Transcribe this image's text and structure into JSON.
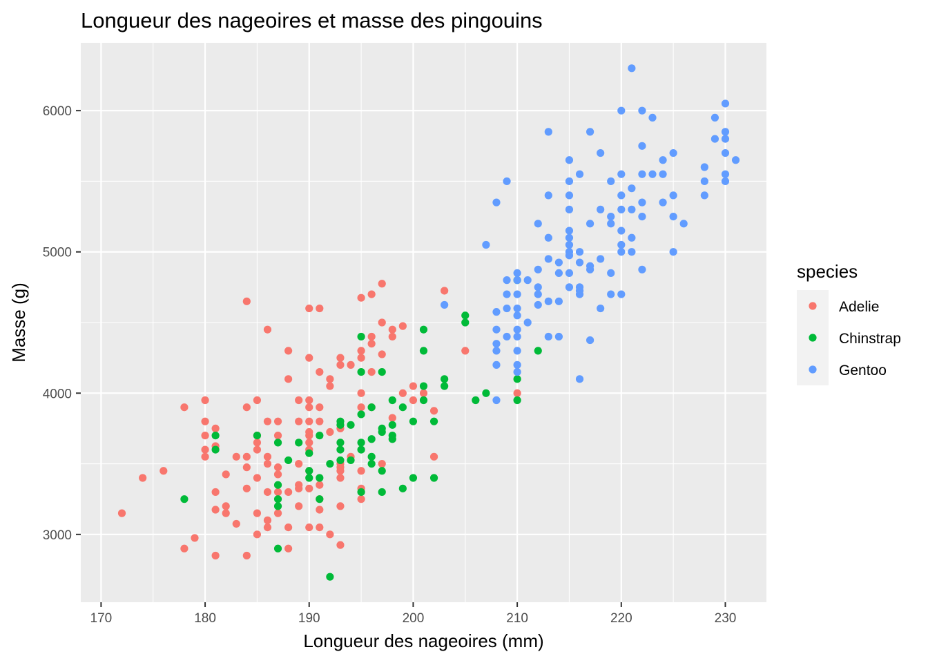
{
  "chart_data": {
    "type": "scatter",
    "title": "Longueur des nageoires et masse des pingouins",
    "xlabel": "Longueur des nageoires (mm)",
    "ylabel": "Masse (g)",
    "xlim": [
      168.05,
      233.95
    ],
    "ylim": [
      2520,
      6480
    ],
    "x_ticks": [
      170,
      180,
      190,
      200,
      210,
      220,
      230
    ],
    "y_ticks": [
      3000,
      4000,
      5000,
      6000
    ],
    "x_tick_labels": [
      "170",
      "180",
      "190",
      "200",
      "210",
      "220",
      "230"
    ],
    "y_tick_labels": [
      "3000",
      "4000",
      "5000",
      "6000"
    ],
    "grid": true,
    "legend": {
      "title": "species",
      "position": "right"
    },
    "series": [
      {
        "name": "Adelie",
        "color": "#F8766D",
        "points": [
          [
            172,
            3150
          ],
          [
            174,
            3400
          ],
          [
            176,
            3450
          ],
          [
            178,
            3900
          ],
          [
            178,
            2900
          ],
          [
            179,
            2975
          ],
          [
            180,
            3950
          ],
          [
            180,
            3800
          ],
          [
            180,
            3700
          ],
          [
            180,
            3600
          ],
          [
            180,
            3550
          ],
          [
            181,
            3750
          ],
          [
            181,
            3625
          ],
          [
            181,
            3300
          ],
          [
            181,
            3175
          ],
          [
            181,
            2850
          ],
          [
            182,
            3425
          ],
          [
            182,
            3200
          ],
          [
            182,
            3150
          ],
          [
            183,
            3550
          ],
          [
            183,
            3075
          ],
          [
            184,
            4650
          ],
          [
            184,
            3900
          ],
          [
            184,
            3550
          ],
          [
            184,
            3475
          ],
          [
            184,
            3325
          ],
          [
            184,
            2850
          ],
          [
            185,
            3950
          ],
          [
            185,
            3700
          ],
          [
            185,
            3650
          ],
          [
            185,
            3600
          ],
          [
            185,
            3400
          ],
          [
            185,
            3150
          ],
          [
            185,
            3000
          ],
          [
            186,
            4450
          ],
          [
            186,
            3800
          ],
          [
            186,
            3550
          ],
          [
            186,
            3500
          ],
          [
            186,
            3300
          ],
          [
            186,
            3100
          ],
          [
            186,
            3050
          ],
          [
            187,
            3800
          ],
          [
            187,
            3700
          ],
          [
            187,
            3475
          ],
          [
            187,
            3425
          ],
          [
            187,
            3300
          ],
          [
            187,
            3150
          ],
          [
            188,
            4300
          ],
          [
            188,
            4100
          ],
          [
            188,
            3300
          ],
          [
            188,
            3050
          ],
          [
            188,
            2900
          ],
          [
            189,
            3950
          ],
          [
            189,
            3800
          ],
          [
            189,
            3500
          ],
          [
            189,
            3350
          ],
          [
            189,
            3325
          ],
          [
            189,
            3200
          ],
          [
            190,
            4600
          ],
          [
            190,
            4250
          ],
          [
            190,
            3950
          ],
          [
            190,
            3900
          ],
          [
            190,
            3800
          ],
          [
            190,
            3725
          ],
          [
            190,
            3700
          ],
          [
            190,
            3650
          ],
          [
            190,
            3600
          ],
          [
            190,
            3450
          ],
          [
            190,
            3325
          ],
          [
            190,
            3050
          ],
          [
            191,
            4600
          ],
          [
            191,
            4150
          ],
          [
            191,
            3900
          ],
          [
            191,
            3800
          ],
          [
            191,
            3350
          ],
          [
            191,
            3250
          ],
          [
            191,
            3175
          ],
          [
            191,
            3050
          ],
          [
            192,
            4100
          ],
          [
            192,
            4050
          ],
          [
            192,
            3725
          ],
          [
            192,
            3000
          ],
          [
            193,
            4250
          ],
          [
            193,
            4200
          ],
          [
            193,
            3750
          ],
          [
            193,
            3500
          ],
          [
            193,
            3475
          ],
          [
            193,
            3450
          ],
          [
            193,
            3400
          ],
          [
            193,
            3200
          ],
          [
            193,
            2925
          ],
          [
            194,
            4200
          ],
          [
            194,
            3550
          ],
          [
            195,
            4675
          ],
          [
            195,
            4300
          ],
          [
            195,
            4250
          ],
          [
            195,
            4000
          ],
          [
            195,
            3900
          ],
          [
            195,
            3450
          ],
          [
            195,
            3325
          ],
          [
            195,
            3250
          ],
          [
            196,
            4700
          ],
          [
            196,
            4400
          ],
          [
            196,
            4350
          ],
          [
            196,
            4150
          ],
          [
            196,
            3900
          ],
          [
            197,
            4775
          ],
          [
            197,
            4500
          ],
          [
            197,
            4275
          ],
          [
            197,
            3500
          ],
          [
            198,
            4450
          ],
          [
            198,
            4400
          ],
          [
            198,
            3825
          ],
          [
            199,
            4475
          ],
          [
            199,
            4000
          ],
          [
            200,
            4050
          ],
          [
            200,
            3950
          ],
          [
            201,
            4000
          ],
          [
            202,
            3875
          ],
          [
            202,
            3550
          ],
          [
            203,
            4725
          ],
          [
            205,
            4300
          ],
          [
            210,
            4000
          ]
        ]
      },
      {
        "name": "Chinstrap",
        "color": "#00BA38",
        "points": [
          [
            178,
            3250
          ],
          [
            181,
            3700
          ],
          [
            181,
            3600
          ],
          [
            185,
            3700
          ],
          [
            187,
            3650
          ],
          [
            187,
            3350
          ],
          [
            187,
            3250
          ],
          [
            187,
            3200
          ],
          [
            187,
            2900
          ],
          [
            188,
            3525
          ],
          [
            189,
            3650
          ],
          [
            190,
            3575
          ],
          [
            190,
            3450
          ],
          [
            190,
            3400
          ],
          [
            191,
            3700
          ],
          [
            191,
            3400
          ],
          [
            191,
            3250
          ],
          [
            192,
            3500
          ],
          [
            192,
            2700
          ],
          [
            193,
            3800
          ],
          [
            193,
            3775
          ],
          [
            193,
            3650
          ],
          [
            193,
            3600
          ],
          [
            193,
            3525
          ],
          [
            194,
            3775
          ],
          [
            194,
            3525
          ],
          [
            195,
            4400
          ],
          [
            195,
            4150
          ],
          [
            195,
            3850
          ],
          [
            195,
            3650
          ],
          [
            195,
            3600
          ],
          [
            195,
            3300
          ],
          [
            196,
            3900
          ],
          [
            196,
            3675
          ],
          [
            196,
            3550
          ],
          [
            196,
            3500
          ],
          [
            197,
            4150
          ],
          [
            197,
            3750
          ],
          [
            197,
            3725
          ],
          [
            197,
            3450
          ],
          [
            197,
            3300
          ],
          [
            198,
            3950
          ],
          [
            198,
            3775
          ],
          [
            198,
            3700
          ],
          [
            198,
            3675
          ],
          [
            199,
            3900
          ],
          [
            199,
            3325
          ],
          [
            200,
            3800
          ],
          [
            200,
            3400
          ],
          [
            201,
            4450
          ],
          [
            201,
            4300
          ],
          [
            201,
            4050
          ],
          [
            201,
            3950
          ],
          [
            202,
            3800
          ],
          [
            202,
            3400
          ],
          [
            203,
            4100
          ],
          [
            203,
            4050
          ],
          [
            205,
            4550
          ],
          [
            205,
            4500
          ],
          [
            206,
            3950
          ],
          [
            207,
            4000
          ],
          [
            210,
            4800
          ],
          [
            210,
            4100
          ],
          [
            210,
            3950
          ],
          [
            212,
            4300
          ]
        ]
      },
      {
        "name": "Gentoo",
        "color": "#619CFF",
        "points": [
          [
            203,
            4625
          ],
          [
            207,
            5050
          ],
          [
            208,
            5350
          ],
          [
            208,
            4575
          ],
          [
            208,
            4450
          ],
          [
            208,
            4350
          ],
          [
            208,
            4300
          ],
          [
            208,
            4200
          ],
          [
            208,
            3950
          ],
          [
            209,
            5500
          ],
          [
            209,
            4800
          ],
          [
            209,
            4700
          ],
          [
            209,
            4600
          ],
          [
            209,
            4400
          ],
          [
            210,
            4850
          ],
          [
            210,
            4800
          ],
          [
            210,
            4700
          ],
          [
            210,
            4600
          ],
          [
            210,
            4550
          ],
          [
            210,
            4450
          ],
          [
            210,
            4400
          ],
          [
            210,
            4300
          ],
          [
            210,
            4200
          ],
          [
            210,
            4150
          ],
          [
            211,
            4800
          ],
          [
            211,
            4500
          ],
          [
            212,
            5200
          ],
          [
            212,
            4875
          ],
          [
            212,
            4750
          ],
          [
            212,
            4700
          ],
          [
            212,
            4625
          ],
          [
            213,
            5850
          ],
          [
            213,
            5400
          ],
          [
            213,
            5100
          ],
          [
            213,
            4950
          ],
          [
            213,
            4650
          ],
          [
            213,
            4400
          ],
          [
            214,
            4925
          ],
          [
            214,
            4850
          ],
          [
            214,
            4650
          ],
          [
            214,
            4400
          ],
          [
            215,
            5650
          ],
          [
            215,
            5500
          ],
          [
            215,
            5400
          ],
          [
            215,
            5300
          ],
          [
            215,
            5150
          ],
          [
            215,
            5100
          ],
          [
            215,
            5050
          ],
          [
            215,
            5000
          ],
          [
            215,
            4975
          ],
          [
            215,
            4850
          ],
          [
            215,
            4750
          ],
          [
            216,
            5550
          ],
          [
            216,
            5000
          ],
          [
            216,
            4925
          ],
          [
            216,
            4750
          ],
          [
            216,
            4725
          ],
          [
            216,
            4700
          ],
          [
            216,
            4100
          ],
          [
            217,
            5850
          ],
          [
            217,
            5200
          ],
          [
            217,
            4900
          ],
          [
            217,
            4875
          ],
          [
            217,
            4375
          ],
          [
            218,
            5700
          ],
          [
            218,
            5300
          ],
          [
            218,
            4950
          ],
          [
            218,
            4600
          ],
          [
            219,
            5500
          ],
          [
            219,
            5250
          ],
          [
            219,
            5200
          ],
          [
            219,
            4850
          ],
          [
            219,
            4700
          ],
          [
            220,
            6000
          ],
          [
            220,
            5550
          ],
          [
            220,
            5400
          ],
          [
            220,
            5300
          ],
          [
            220,
            5150
          ],
          [
            220,
            5050
          ],
          [
            220,
            5000
          ],
          [
            220,
            4700
          ],
          [
            221,
            6300
          ],
          [
            221,
            5450
          ],
          [
            221,
            5300
          ],
          [
            221,
            5100
          ],
          [
            221,
            5000
          ],
          [
            222,
            6000
          ],
          [
            222,
            5750
          ],
          [
            222,
            5550
          ],
          [
            222,
            5350
          ],
          [
            222,
            5250
          ],
          [
            222,
            4875
          ],
          [
            223,
            5950
          ],
          [
            223,
            5550
          ],
          [
            224,
            5650
          ],
          [
            224,
            5550
          ],
          [
            224,
            5350
          ],
          [
            225,
            5700
          ],
          [
            225,
            5400
          ],
          [
            225,
            5250
          ],
          [
            225,
            5000
          ],
          [
            226,
            5200
          ],
          [
            228,
            5600
          ],
          [
            228,
            5500
          ],
          [
            228,
            5400
          ],
          [
            229,
            5950
          ],
          [
            229,
            5800
          ],
          [
            230,
            6050
          ],
          [
            230,
            5850
          ],
          [
            230,
            5800
          ],
          [
            230,
            5700
          ],
          [
            230,
            5550
          ],
          [
            230,
            5500
          ],
          [
            231,
            5650
          ]
        ]
      }
    ]
  }
}
